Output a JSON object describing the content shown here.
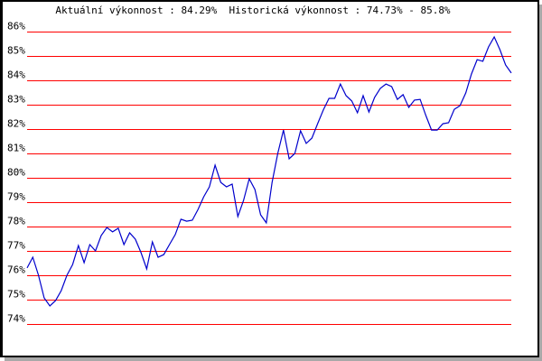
{
  "chart_data": {
    "type": "line",
    "title_parts": {
      "current_label": "Aktuální výkonnost",
      "current_value": "84.29%",
      "historic_label": "Historická výkonnost",
      "historic_range": "74.73% - 85.8%"
    },
    "xlabel": "",
    "ylabel": "",
    "ylim": [
      74,
      86
    ],
    "yticks": [
      "86%",
      "85%",
      "84%",
      "83%",
      "82%",
      "81%",
      "80%",
      "79%",
      "78%",
      "77%",
      "76%",
      "75%",
      "74%"
    ],
    "grid": true,
    "grid_color": "#ff0000",
    "line_color": "#0000cc",
    "series": [
      {
        "values": [
          76.3,
          76.74,
          76.0,
          75.07,
          74.74,
          74.96,
          75.37,
          76.0,
          76.44,
          77.22,
          76.52,
          77.26,
          77.0,
          77.63,
          77.96,
          77.78,
          77.93,
          77.26,
          77.74,
          77.48,
          76.93,
          76.26,
          77.37,
          76.74,
          76.85,
          77.26,
          77.67,
          78.3,
          78.22,
          78.26,
          78.7,
          79.22,
          79.63,
          80.52,
          79.81,
          79.63,
          79.74,
          78.41,
          79.07,
          79.96,
          79.52,
          78.48,
          78.15,
          79.81,
          81.0,
          81.96,
          80.78,
          81.0,
          81.93,
          81.41,
          81.63,
          82.22,
          82.78,
          83.26,
          83.26,
          83.85,
          83.37,
          83.15,
          82.67,
          83.37,
          82.7,
          83.3,
          83.67,
          83.85,
          83.74,
          83.22,
          83.41,
          82.89,
          83.19,
          83.22,
          82.56,
          81.96,
          81.96,
          82.22,
          82.26,
          82.81,
          82.96,
          83.48,
          84.26,
          84.85,
          84.78,
          85.37,
          85.78,
          85.26,
          84.63,
          84.3
        ]
      }
    ]
  }
}
